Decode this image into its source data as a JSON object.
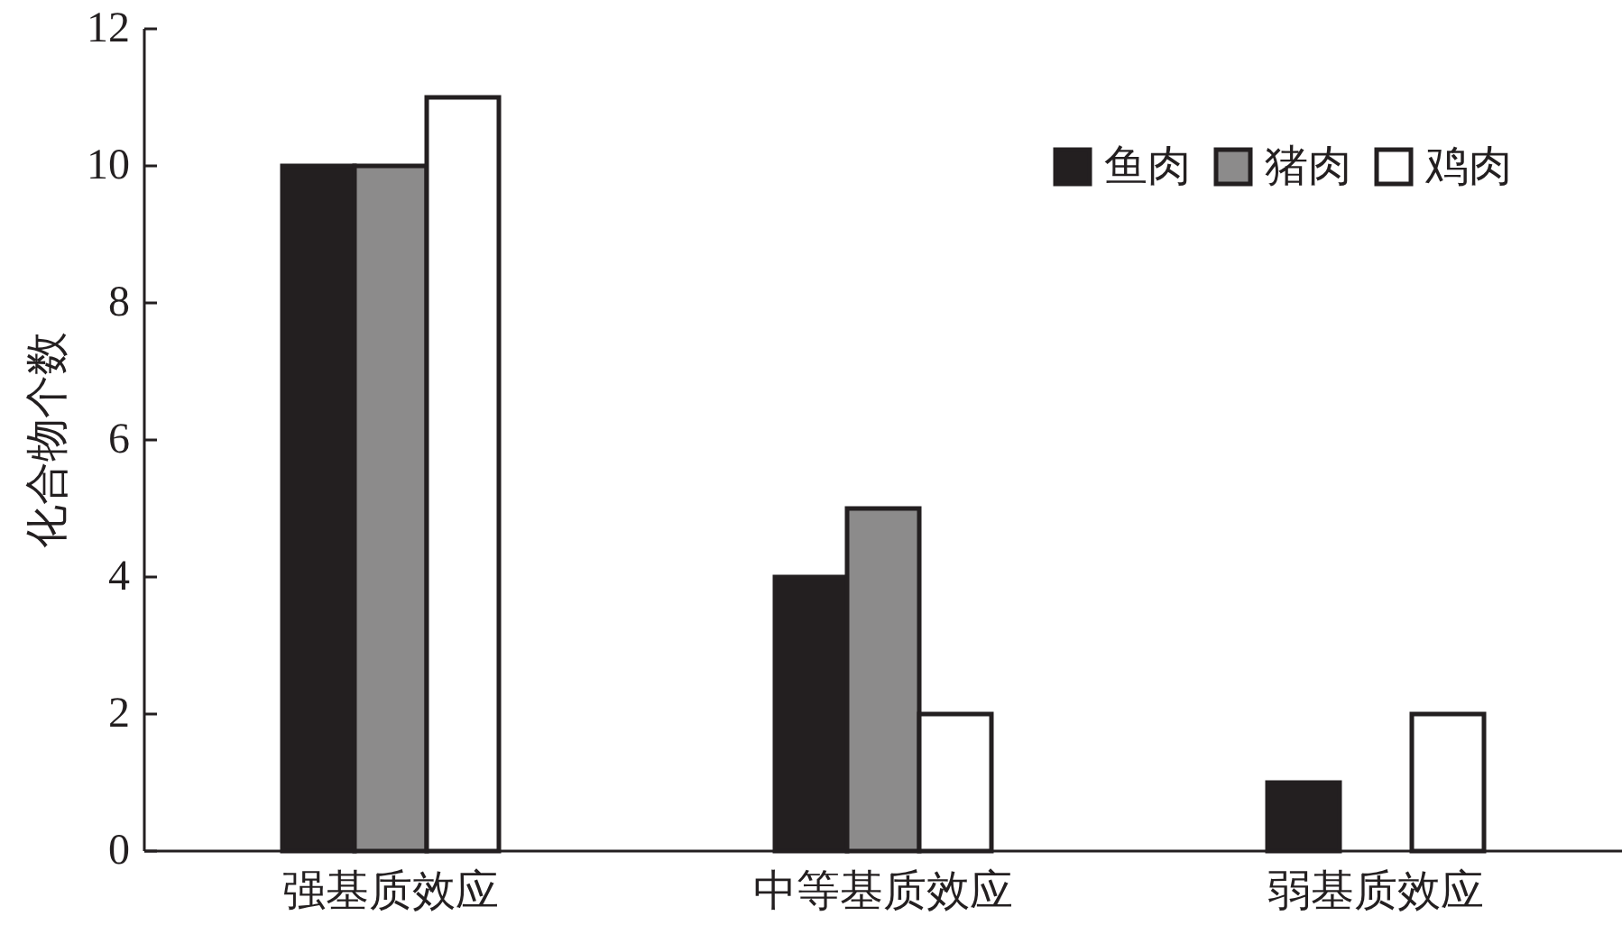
{
  "chart_data": {
    "type": "bar",
    "ylabel": "化合物个数",
    "categories": [
      "强基质效应",
      "中等基质效应",
      "弱基质效应"
    ],
    "series": [
      {
        "name": "鱼肉",
        "color": "#231f20",
        "values": [
          10,
          4,
          1
        ]
      },
      {
        "name": "猪肉",
        "color": "#8c8b8b",
        "values": [
          10,
          5,
          0
        ]
      },
      {
        "name": "鸡肉",
        "color": "#ffffff",
        "values": [
          11,
          2,
          2
        ]
      }
    ],
    "ylim": [
      0,
      12
    ],
    "yticks": [
      0,
      2,
      4,
      6,
      8,
      10,
      12
    ],
    "grid": false,
    "legend": "top right"
  }
}
